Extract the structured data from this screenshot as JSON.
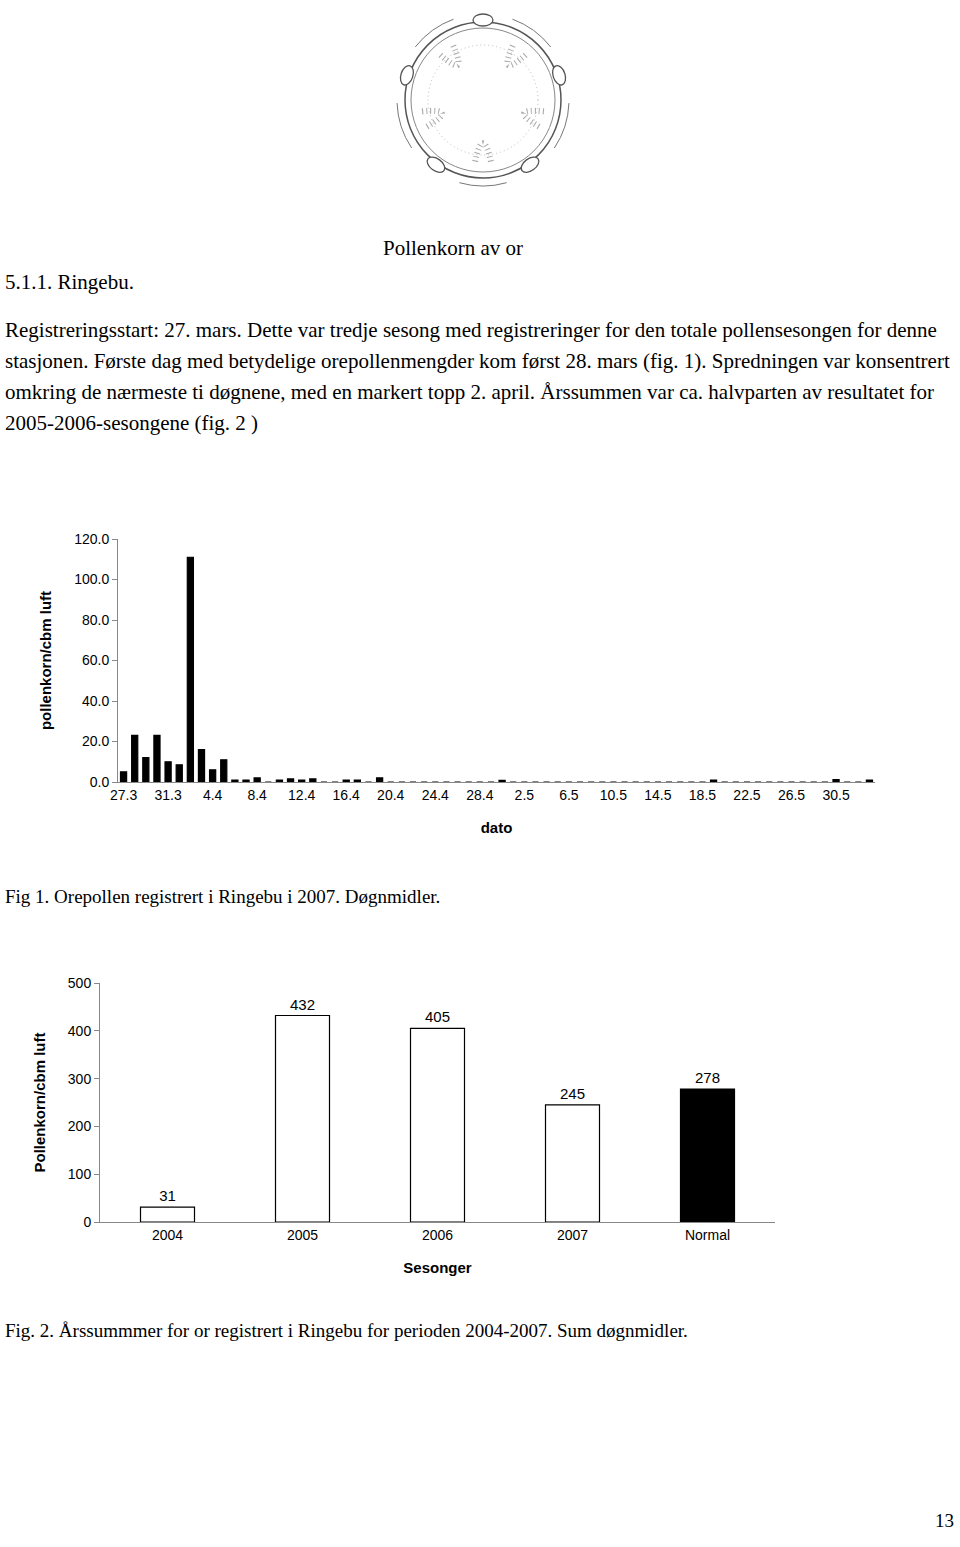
{
  "document": {
    "figure_caption": "Pollenkorn av or",
    "heading": "5.1.1. Ringebu.",
    "paragraph": "Registreringsstart: 27. mars. Dette var tredje sesong med registreringer for den totale pollensesongen for denne stasjonen. Første dag med betydelige orepollenmengder kom først 28. mars (fig. 1). Spredningen var konsentrert omkring de nærmeste ti døgnene, med en markert topp 2. april. Årssummen var ca. halvparten av resultatet for 2005-2006-sesongene (fig. 2 )",
    "captions": [
      "Fig 1. Orepollen registrert i Ringebu i 2007. Døgnmidler.",
      "Fig. 2. Årssummmer for or registrert i Ringebu for perioden 2004-2007. Sum døgnmidler."
    ],
    "page_number": "13"
  },
  "chart_data": [
    {
      "type": "bar",
      "x_label": "dato",
      "y_label": "pollenkorn/cbm luft",
      "categories": [
        "27.3",
        null,
        null,
        null,
        "31.3",
        null,
        null,
        null,
        "4.4",
        null,
        null,
        null,
        "8.4",
        null,
        null,
        null,
        "12.4",
        null,
        null,
        null,
        "16.4",
        null,
        null,
        null,
        "20.4",
        null,
        null,
        null,
        "24.4",
        null,
        null,
        null,
        "28.4",
        null,
        null,
        null,
        "2.5",
        null,
        null,
        null,
        "6.5",
        null,
        null,
        null,
        "10.5",
        null,
        null,
        null,
        "14.5",
        null,
        null,
        null,
        "18.5",
        null,
        null,
        null,
        "22.5",
        null,
        null,
        null,
        "26.5",
        null,
        null,
        null,
        "30.5",
        null,
        null,
        null
      ],
      "values": [
        5,
        23,
        12,
        23,
        10,
        8.5,
        111,
        16,
        6,
        11,
        1,
        1,
        2,
        0,
        1,
        1.5,
        1,
        1.5,
        0,
        0,
        1,
        1,
        0,
        2,
        0,
        0,
        0,
        0,
        0,
        0,
        0,
        0,
        0,
        0,
        0.8,
        0,
        0,
        0,
        0,
        0,
        0,
        0,
        0,
        0,
        0,
        0,
        0,
        0,
        0,
        0,
        0,
        0,
        0,
        1,
        0,
        0,
        0,
        0,
        0,
        0,
        0,
        0,
        0,
        0,
        1.2,
        0,
        0,
        1
      ],
      "color": "#000000",
      "ylim": [
        0,
        120
      ],
      "yticks": [
        {
          "value": 0,
          "label": "0.0"
        },
        {
          "value": 20,
          "label": "20.0"
        },
        {
          "value": 40,
          "label": "40.0"
        },
        {
          "value": 60,
          "label": "60.0"
        },
        {
          "value": 80,
          "label": "80.0"
        },
        {
          "value": 100,
          "label": "100.0"
        },
        {
          "value": 120,
          "label": "120.0"
        }
      ],
      "grid": false
    },
    {
      "type": "bar",
      "x_label": "Sesonger",
      "y_label": "Pollenkorn/cbm luft",
      "categories": [
        "2004",
        "2005",
        "2006",
        "2007",
        "Normal"
      ],
      "values": [
        31,
        432,
        405,
        245,
        278
      ],
      "colors": [
        "#ffffff",
        "#ffffff",
        "#ffffff",
        "#ffffff",
        "#000000"
      ],
      "data_labels": true,
      "ylim": [
        0,
        500
      ],
      "yticks": [
        0,
        100,
        200,
        300,
        400,
        500
      ],
      "grid": false
    }
  ]
}
